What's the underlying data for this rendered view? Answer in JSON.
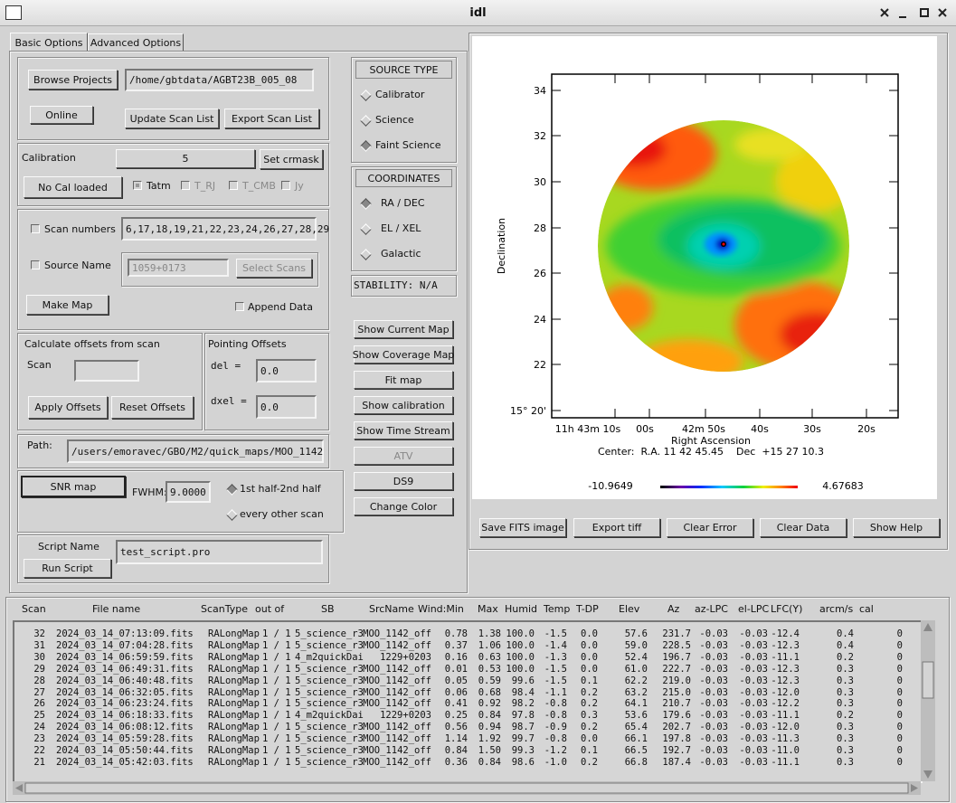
{
  "window": {
    "title": "idl"
  },
  "tabs": [
    "Basic Options",
    "Advanced Options"
  ],
  "project": {
    "browse": "Browse Projects",
    "path": "/home/gbtdata/AGBT23B_005_08",
    "online": "Online",
    "update": "Update Scan List",
    "export": "Export Scan List"
  },
  "calibration": {
    "label": "Calibration",
    "value": "5",
    "set_crmask": "Set crmask",
    "status": "No Cal loaded",
    "units": [
      "Tatm",
      "T_RJ",
      "T_CMB",
      "Jy"
    ]
  },
  "scans": {
    "scan_numbers": "Scan numbers",
    "scan_list": "6,17,18,19,21,22,23,24,26,27,28,29",
    "source_name": "Source Name",
    "source_value": "1059+0173",
    "select_scans": "Select Scans",
    "make_map": "Make Map",
    "append": "Append Data"
  },
  "offsets": {
    "calc": "Calculate offsets from scan",
    "scan": "Scan",
    "apply": "Apply Offsets",
    "reset": "Reset Offsets",
    "pointing": "Pointing Offsets",
    "del_label": "del  =",
    "del": "0.0",
    "dxel_label": "dxel =",
    "dxel": "0.0"
  },
  "path": {
    "label": "Path:",
    "value": "/users/emoravec/GBO/M2/quick_maps/MOO_1142"
  },
  "snr": {
    "button": "SNR map",
    "fwhm_label": "FWHM:",
    "fwhm": "9.0000",
    "options": [
      "1st half-2nd half",
      "every other scan"
    ]
  },
  "script": {
    "label": "Script Name",
    "value": "test_script.pro",
    "run": "Run Script"
  },
  "source_type": {
    "title": "SOURCE TYPE",
    "options": [
      "Calibrator",
      "Science",
      "Faint Science"
    ]
  },
  "coordinates": {
    "title": "COORDINATES",
    "options": [
      "RA / DEC",
      "EL / XEL",
      "Galactic"
    ]
  },
  "stability": "STABILITY: N/A",
  "actions": [
    "Show Current Map",
    "Show Coverage Map",
    "Fit map",
    "Show calibration",
    "Show Time Stream",
    "ATV",
    "DS9",
    "Change Color"
  ],
  "plot": {
    "ylabel": "Declination",
    "xlabel": "Right Ascension",
    "yticks": [
      "34",
      "32",
      "30",
      "28",
      "26",
      "24",
      "22",
      "15° 20'"
    ],
    "xticks": [
      "11h 43m 10s",
      "00s",
      "42m 50s",
      "40s",
      "30s",
      "20s"
    ],
    "center": "Center:  R.A. 11 42 45.45    Dec  +15 27 10.3",
    "colorbar": {
      "min": "-10.9649",
      "max": "4.67683"
    }
  },
  "plot_buttons": [
    "Save FITS image",
    "Export tiff",
    "Clear Error",
    "Clear Data",
    "Show Help"
  ],
  "table": {
    "headers": [
      "Scan",
      "File name",
      "ScanType",
      "out of",
      "SB",
      "SrcName",
      "Wind:Min",
      "Max",
      "Humid",
      "Temp",
      "T-DP",
      "Elev",
      "Az",
      "az-LPC",
      "el-LPC",
      "LFC(Y)",
      "arcm/s",
      "cal"
    ],
    "rows": [
      [
        "32",
        "2024_03_14_07:13:09.fits",
        "RALongMap",
        "1 / 1",
        "5_science_r3",
        "MOO_1142_off",
        "0.78",
        "1.38",
        "100.0",
        "-1.5",
        "0.0",
        "57.6",
        "231.7",
        "-0.03",
        "-0.03",
        "-12.4",
        "0.4",
        "0"
      ],
      [
        "31",
        "2024_03_14_07:04:28.fits",
        "RALongMap",
        "1 / 1",
        "5_science_r3",
        "MOO_1142_off",
        "0.37",
        "1.06",
        "100.0",
        "-1.4",
        "0.0",
        "59.0",
        "228.5",
        "-0.03",
        "-0.03",
        "-12.3",
        "0.4",
        "0"
      ],
      [
        "30",
        "2024_03_14_06:59:59.fits",
        "RALongMap",
        "1 / 1",
        "4_m2quickDai",
        "1229+0203",
        "0.16",
        "0.63",
        "100.0",
        "-1.3",
        "0.0",
        "52.4",
        "196.7",
        "-0.03",
        "-0.03",
        "-11.1",
        "0.2",
        "0"
      ],
      [
        "29",
        "2024_03_14_06:49:31.fits",
        "RALongMap",
        "1 / 1",
        "5_science_r3",
        "MOO_1142_off",
        "0.01",
        "0.53",
        "100.0",
        "-1.5",
        "0.0",
        "61.0",
        "222.7",
        "-0.03",
        "-0.03",
        "-12.3",
        "0.3",
        "0"
      ],
      [
        "28",
        "2024_03_14_06:40:48.fits",
        "RALongMap",
        "1 / 1",
        "5_science_r3",
        "MOO_1142_off",
        "0.05",
        "0.59",
        "99.6",
        "-1.5",
        "0.1",
        "62.2",
        "219.0",
        "-0.03",
        "-0.03",
        "-12.3",
        "0.3",
        "0"
      ],
      [
        "27",
        "2024_03_14_06:32:05.fits",
        "RALongMap",
        "1 / 1",
        "5_science_r3",
        "MOO_1142_off",
        "0.06",
        "0.68",
        "98.4",
        "-1.1",
        "0.2",
        "63.2",
        "215.0",
        "-0.03",
        "-0.03",
        "-12.0",
        "0.3",
        "0"
      ],
      [
        "26",
        "2024_03_14_06:23:24.fits",
        "RALongMap",
        "1 / 1",
        "5_science_r3",
        "MOO_1142_off",
        "0.41",
        "0.92",
        "98.2",
        "-0.8",
        "0.2",
        "64.1",
        "210.7",
        "-0.03",
        "-0.03",
        "-12.2",
        "0.3",
        "0"
      ],
      [
        "25",
        "2024_03_14_06:18:33.fits",
        "RALongMap",
        "1 / 1",
        "4_m2quickDai",
        "1229+0203",
        "0.25",
        "0.84",
        "97.8",
        "-0.8",
        "0.3",
        "53.6",
        "179.6",
        "-0.03",
        "-0.03",
        "-11.1",
        "0.2",
        "0"
      ],
      [
        "24",
        "2024_03_14_06:08:12.fits",
        "RALongMap",
        "1 / 1",
        "5_science_r3",
        "MOO_1142_off",
        "0.56",
        "0.94",
        "98.7",
        "-0.9",
        "0.2",
        "65.4",
        "202.7",
        "-0.03",
        "-0.03",
        "-12.0",
        "0.3",
        "0"
      ],
      [
        "23",
        "2024_03_14_05:59:28.fits",
        "RALongMap",
        "1 / 1",
        "5_science_r3",
        "MOO_1142_off",
        "1.14",
        "1.92",
        "99.7",
        "-0.8",
        "0.0",
        "66.1",
        "197.8",
        "-0.03",
        "-0.03",
        "-11.3",
        "0.3",
        "0"
      ],
      [
        "22",
        "2024_03_14_05:50:44.fits",
        "RALongMap",
        "1 / 1",
        "5_science_r3",
        "MOO_1142_off",
        "0.84",
        "1.50",
        "99.3",
        "-1.2",
        "0.1",
        "66.5",
        "192.7",
        "-0.03",
        "-0.03",
        "-11.0",
        "0.3",
        "0"
      ],
      [
        "21",
        "2024_03_14_05:42:03.fits",
        "RALongMap",
        "1 / 1",
        "5_science_r3",
        "MOO_1142_off",
        "0.36",
        "0.84",
        "98.6",
        "-1.0",
        "0.2",
        "66.8",
        "187.4",
        "-0.03",
        "-0.03",
        "-11.1",
        "0.3",
        "0"
      ]
    ]
  }
}
